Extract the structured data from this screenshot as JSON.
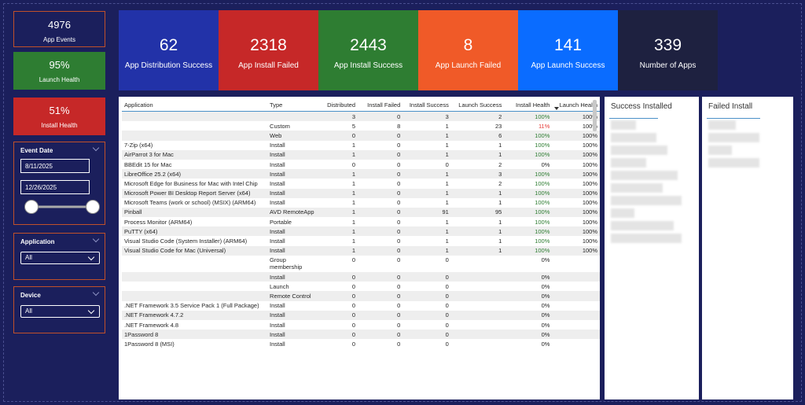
{
  "left_cards": [
    {
      "value": "4976",
      "label": "App Events"
    },
    {
      "value": "95%",
      "label": "Launch Health"
    },
    {
      "value": "51%",
      "label": "Install Health"
    }
  ],
  "filters": {
    "event_date": {
      "title": "Event Date",
      "start": "8/11/2025",
      "end": "12/26/2025"
    },
    "application": {
      "title": "Application",
      "selection": "All"
    },
    "device": {
      "title": "Device",
      "selection": "All"
    }
  },
  "kpis": [
    {
      "value": 62,
      "label": "App Distribution Success",
      "color": "#2232a8"
    },
    {
      "value": 2318,
      "label": "App Install Failed",
      "color": "#c62828"
    },
    {
      "value": 2443,
      "label": "App Install Success",
      "color": "#2e7d32"
    },
    {
      "value": 8,
      "label": "App Launch Failed",
      "color": "#f05a28"
    },
    {
      "value": 141,
      "label": "App Launch Success",
      "color": "#0a6cff"
    },
    {
      "value": 339,
      "label": "Number of Apps",
      "color": "#1e2140"
    }
  ],
  "table": {
    "columns": [
      "Application",
      "Type",
      "Distributed",
      "Install Failed",
      "Install Success",
      "Launch Success",
      "Install Health",
      "Launch Health"
    ],
    "rows": [
      [
        null,
        null,
        3,
        0,
        3,
        2,
        "100%",
        "100%"
      ],
      [
        null,
        "Custom",
        5,
        8,
        1,
        23,
        "11%",
        "100%"
      ],
      [
        null,
        "Web",
        0,
        0,
        1,
        6,
        "100%",
        "100%"
      ],
      [
        "7-Zip (x64)",
        "Install",
        1,
        0,
        1,
        1,
        "100%",
        "100%"
      ],
      [
        "AirParrot 3 for Mac",
        "Install",
        1,
        0,
        1,
        1,
        "100%",
        "100%"
      ],
      [
        "BBEdit 15 for Mac",
        "Install",
        0,
        0,
        0,
        2,
        "0%",
        "100%"
      ],
      [
        "LibreOffice 25.2 (x64)",
        "Install",
        1,
        0,
        1,
        3,
        "100%",
        "100%"
      ],
      [
        "Microsoft Edge for Business for Mac with Intel Chip",
        "Install",
        1,
        0,
        1,
        2,
        "100%",
        "100%"
      ],
      [
        "Microsoft Power BI Desktop Report Server (x64)",
        "Install",
        1,
        0,
        1,
        1,
        "100%",
        "100%"
      ],
      [
        "Microsoft Teams (work or school) (MSIX) (ARM64)",
        "Install",
        1,
        0,
        1,
        1,
        "100%",
        "100%"
      ],
      [
        "Pinball",
        "AVD RemoteApp",
        1,
        0,
        91,
        95,
        "100%",
        "100%"
      ],
      [
        "Process Monitor (ARM64)",
        "Portable",
        1,
        0,
        1,
        1,
        "100%",
        "100%"
      ],
      [
        "PuTTY (x64)",
        "Install",
        1,
        0,
        1,
        1,
        "100%",
        "100%"
      ],
      [
        "Visual Studio Code (System Installer) (ARM64)",
        "Install",
        1,
        0,
        1,
        1,
        "100%",
        "100%"
      ],
      [
        "Visual Studio Code for Mac (Universal)",
        "Install",
        1,
        0,
        1,
        1,
        "100%",
        "100%"
      ],
      [
        null,
        "Group membership",
        0,
        0,
        0,
        null,
        "0%",
        null
      ],
      [
        null,
        "Install",
        0,
        0,
        0,
        null,
        "0%",
        null
      ],
      [
        null,
        "Launch",
        0,
        0,
        0,
        null,
        "0%",
        null
      ],
      [
        null,
        "Remote Control",
        0,
        0,
        0,
        null,
        "0%",
        null
      ],
      [
        ".NET Framework 3.5 Service Pack 1 (Full Package)",
        "Install",
        0,
        0,
        0,
        null,
        "0%",
        null
      ],
      [
        ".NET Framework 4.7.2",
        "Install",
        0,
        0,
        0,
        null,
        "0%",
        null
      ],
      [
        ".NET Framework 4.8",
        "Install",
        0,
        0,
        0,
        null,
        "0%",
        null
      ],
      [
        "1Password 8",
        "Install",
        0,
        0,
        0,
        null,
        "0%",
        null
      ],
      [
        "1Password 8 (MSI)",
        "Install",
        0,
        0,
        0,
        null,
        "0%",
        null
      ]
    ],
    "good_color": "#2e7d32",
    "bad_color": "#e53935"
  },
  "panels": [
    {
      "title": "Success Installed"
    },
    {
      "title": "Failed Install"
    }
  ]
}
